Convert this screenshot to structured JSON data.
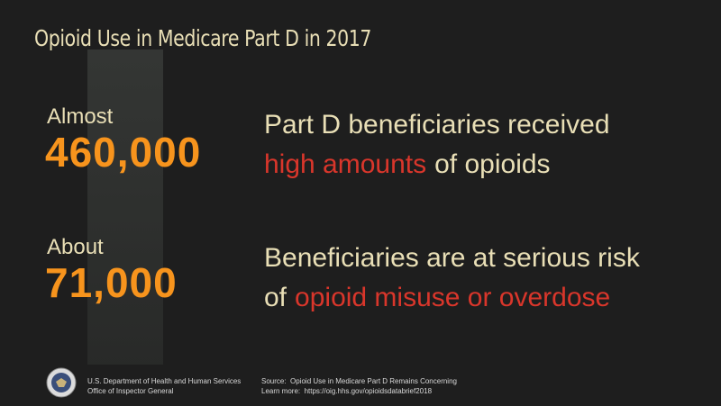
{
  "title": "Opioid Use in Medicare Part D in 2017",
  "stats": [
    {
      "qualifier": "Almost",
      "number": "460,000",
      "line1": "Part D beneficiaries received",
      "line2_highlight": "high amounts",
      "line2_rest": "of opioids"
    },
    {
      "qualifier": "About",
      "number": "71,000",
      "line1": "Beneficiaries are at serious risk",
      "line2_lead": "of",
      "line2_highlight": "opioid misuse or overdose"
    }
  ],
  "footer": {
    "agency": [
      "U.S. Department of Health and Human Services",
      "Office of Inspector General"
    ],
    "source": "Source:  Opioid Use in Medicare Part D Remains Concerning",
    "learn_more": "Learn more:  https://oig.hhs.gov/opioidsdatabrief2018"
  }
}
